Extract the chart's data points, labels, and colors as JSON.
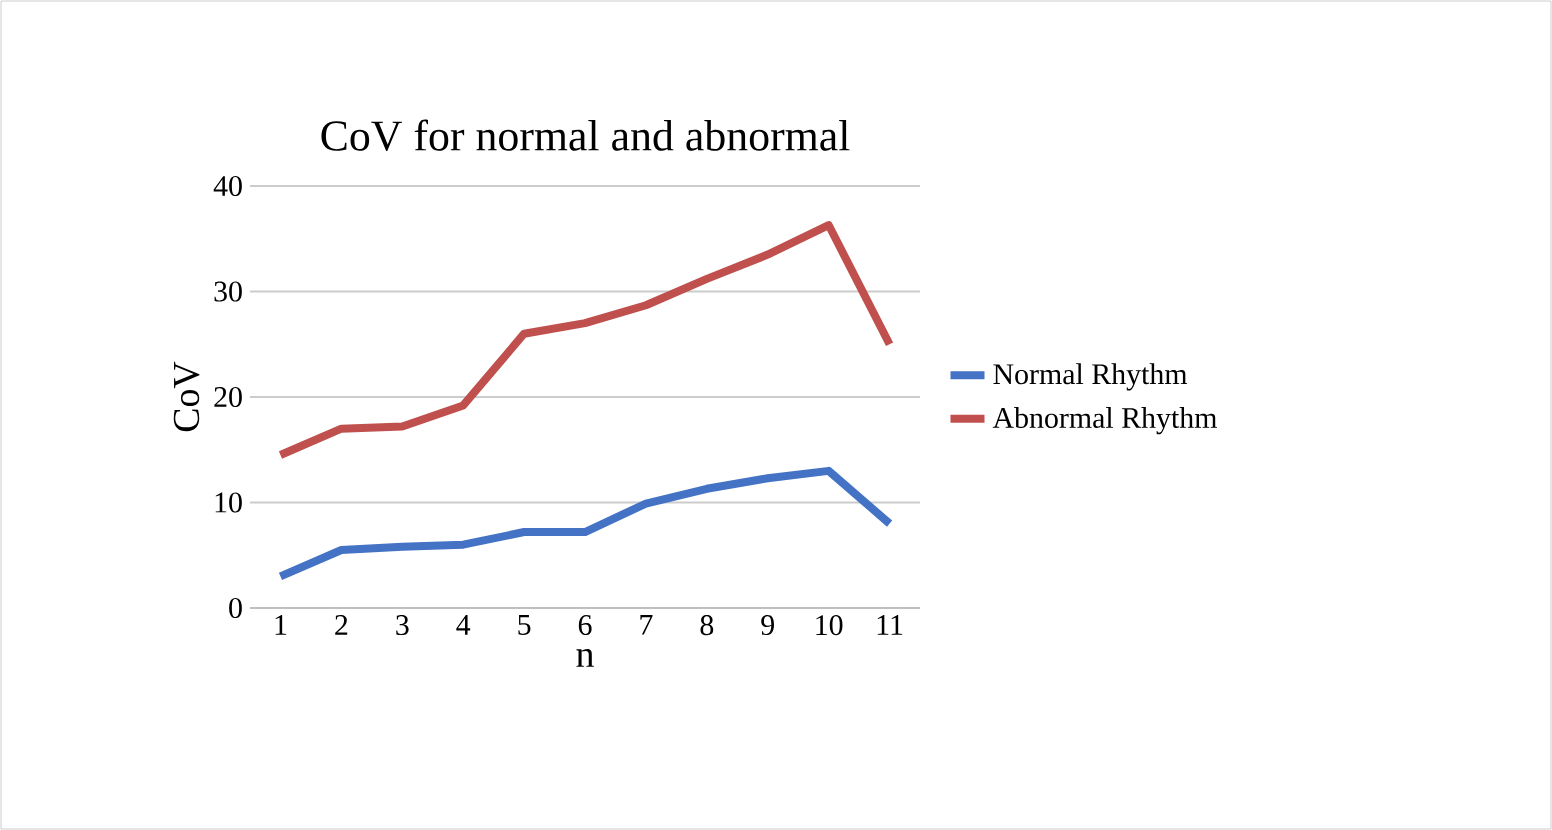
{
  "chart_data": {
    "type": "line",
    "title": "CoV for normal and abnormal",
    "xlabel": "n",
    "ylabel": "CoV",
    "categories": [
      "1",
      "2",
      "3",
      "4",
      "5",
      "6",
      "7",
      "8",
      "9",
      "10",
      "11"
    ],
    "series": [
      {
        "name": "Normal Rhythm",
        "color": "#4472c4",
        "values": [
          3,
          5.5,
          5.8,
          6,
          7.2,
          7.2,
          9.9,
          11.3,
          12.3,
          13,
          8
        ]
      },
      {
        "name": "Abnormal Rhythm",
        "color": "#c0504d",
        "values": [
          14.5,
          17,
          17.2,
          19.2,
          26,
          27,
          28.7,
          31.2,
          33.5,
          36.3,
          25
        ]
      }
    ],
    "ylim": [
      0,
      40
    ],
    "yticks": [
      0,
      10,
      20,
      30,
      40
    ],
    "grid": "y",
    "legend": "right",
    "marker": "none",
    "line_style": "solid"
  }
}
